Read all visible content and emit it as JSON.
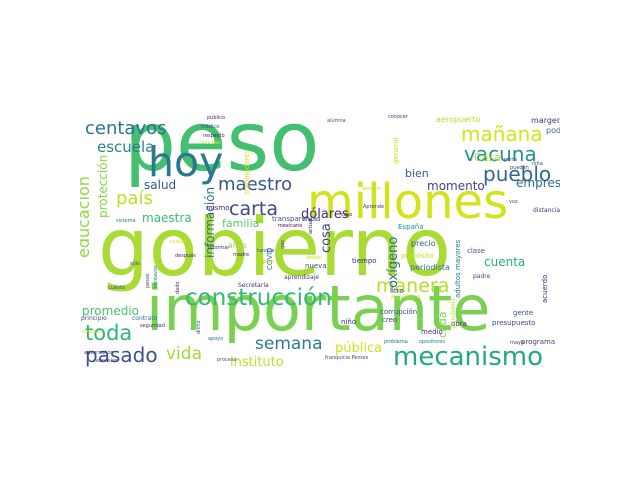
{
  "words": [
    {
      "text": "gobierno",
      "color": "#a8db34"
    },
    {
      "text": "peso",
      "color": "#44bf70"
    },
    {
      "text": "importante",
      "color": "#7ad151"
    },
    {
      "text": "millones",
      "color": "#d2e21b"
    },
    {
      "text": "hoy",
      "color": "#2a788e"
    },
    {
      "text": "mecanismo",
      "color": "#22a884"
    },
    {
      "text": "construcción",
      "color": "#35b779"
    },
    {
      "text": "centavos",
      "color": "#2c728e"
    },
    {
      "text": "mañana",
      "color": "#d8e219"
    },
    {
      "text": "vacuna",
      "color": "#21918c"
    },
    {
      "text": "pueblo",
      "color": "#31688e"
    },
    {
      "text": "toda",
      "color": "#2fb47c"
    },
    {
      "text": "pasado",
      "color": "#3b528b"
    },
    {
      "text": "maestro",
      "color": "#39568c"
    },
    {
      "text": "carta",
      "color": "#3e4989"
    },
    {
      "text": "manera",
      "color": "#b5de2b"
    },
    {
      "text": "país",
      "color": "#bddf26"
    },
    {
      "text": "escuela",
      "color": "#26828e"
    },
    {
      "text": "semana",
      "color": "#287d8e"
    },
    {
      "text": "vida",
      "color": "#a0da39"
    },
    {
      "text": "educación",
      "color": "#8fd744"
    },
    {
      "text": "dólares",
      "color": "#472d7b"
    },
    {
      "text": "salud",
      "color": "#38598c"
    },
    {
      "text": "momento",
      "color": "#3f4788"
    },
    {
      "text": "empresa",
      "color": "#31688e"
    },
    {
      "text": "cuenta",
      "color": "#25ac82"
    },
    {
      "text": "pública",
      "color": "#d0e11c"
    },
    {
      "text": "instituto",
      "color": "#c2df23"
    },
    {
      "text": "promedio",
      "color": "#4ac16d"
    },
    {
      "text": "maestra",
      "color": "#3dbc74"
    },
    {
      "text": "bien",
      "color": "#39568c"
    },
    {
      "text": "Casa",
      "color": "#a5db36"
    },
    {
      "text": "oxígeno",
      "color": "#2d708e"
    },
    {
      "text": "cosa",
      "color": "#404688"
    },
    {
      "text": "información",
      "color": "#2a768e"
    },
    {
      "text": "protección",
      "color": "#86d549"
    },
    {
      "text": "familia",
      "color": "#5ec962"
    },
    {
      "text": "cada",
      "color": "#83d34b"
    },
    {
      "text": "aeropuerto",
      "color": "#b8de29"
    },
    {
      "text": "margen",
      "color": "#46337e"
    },
    {
      "text": "poder",
      "color": "#2e6e8e"
    },
    {
      "text": "mismo",
      "color": "#481b6d"
    },
    {
      "text": "años",
      "color": "#9bd93c"
    },
    {
      "text": "precio",
      "color": "#365c8d"
    },
    {
      "text": "tiempo",
      "color": "#482677"
    },
    {
      "text": "periodista",
      "color": "#2d708e"
    },
    {
      "text": "clase",
      "color": "#3b528b"
    },
    {
      "text": "España",
      "color": "#1f958b"
    },
    {
      "text": "general",
      "color": "#d5e21a"
    },
    {
      "text": "propósito",
      "color": "#bddf26"
    },
    {
      "text": "presupuesto",
      "color": "#3e4c8a"
    },
    {
      "text": "gente",
      "color": "#3a548c"
    },
    {
      "text": "programa",
      "color": "#414487"
    },
    {
      "text": "obra",
      "color": "#482475"
    },
    {
      "text": "niño",
      "color": "#482576"
    },
    {
      "text": "creo",
      "color": "#424086"
    },
    {
      "text": "nueva",
      "color": "#3e4989"
    },
    {
      "text": "COVID",
      "color": "#31688e"
    },
    {
      "text": "trabajadores",
      "color": "#d5e21a"
    },
    {
      "text": "transparencia",
      "color": "#3d4e8a"
    },
    {
      "text": "adultos mayores",
      "color": "#2a788e"
    },
    {
      "text": "Secretaría",
      "color": "#472c7a"
    },
    {
      "text": "corrupción",
      "color": "#3f4889"
    },
    {
      "text": "aprendizaje",
      "color": "#453581"
    },
    {
      "text": "litro",
      "color": "#404588"
    },
    {
      "text": "medio",
      "color": "#46327e"
    },
    {
      "text": "pandemia",
      "color": "#b5de2b"
    },
    {
      "text": "República",
      "color": "#bade28"
    },
    {
      "text": "padre",
      "color": "#3e4989"
    },
    {
      "text": "acuerdo",
      "color": "#482878"
    },
    {
      "text": "distancia",
      "color": "#46327e"
    },
    {
      "text": "conocer",
      "color": "#46327e"
    },
    {
      "text": "alumno",
      "color": "#c0df25"
    },
    {
      "text": "alumna",
      "color": "#3b528b"
    },
    {
      "text": "público",
      "color": "#481f70"
    },
    {
      "text": "médico",
      "color": "#3b528b"
    },
    {
      "text": "respecto",
      "color": "#481467"
    },
    {
      "text": "muchas",
      "color": "#d5e21a"
    },
    {
      "text": "sistema",
      "color": "#2a788e"
    },
    {
      "text": "pesos",
      "color": "#443983"
    },
    {
      "text": "centavos",
      "color": "#2a778e"
    },
    {
      "text": "principio",
      "color": "#3e4989"
    },
    {
      "text": "contrato",
      "color": "#2a768e"
    },
    {
      "text": "sólo",
      "color": "#38588c"
    },
    {
      "text": "después",
      "color": "#481b6d"
    },
    {
      "text": "cuánto",
      "color": "#3b528b"
    },
    {
      "text": "apoyo",
      "color": "#2a768e"
    },
    {
      "text": "proceso",
      "color": "#3a538b"
    },
    {
      "text": "franquicia Pemex",
      "color": "#3f4788"
    },
    {
      "text": "televisión",
      "color": "#424086"
    },
    {
      "text": "informar",
      "color": "#46307e"
    },
    {
      "text": "tanque",
      "color": "#3e4a89"
    },
    {
      "text": "madre",
      "color": "#482576"
    },
    {
      "text": "deben",
      "color": "#d8e219"
    },
    {
      "text": "enero",
      "color": "#3a548c"
    },
    {
      "text": "problema",
      "color": "#2f6c8e"
    },
    {
      "text": "opositores",
      "color": "#2a788e"
    },
    {
      "text": "mexicano",
      "color": "#440154"
    },
    {
      "text": "Aprende",
      "color": "#463480"
    },
    {
      "text": "parte",
      "color": "#3d4e8a"
    },
    {
      "text": "pueden",
      "color": "#414487"
    },
    {
      "text": "avance",
      "color": "#d0e11c"
    },
    {
      "text": "adversarios",
      "color": "#46327e"
    },
    {
      "text": "dado",
      "color": "#443983"
    },
    {
      "text": "dicho",
      "color": "#3e4a89"
    },
    {
      "text": "seguridad",
      "color": "#472a7a"
    },
    {
      "text": "plan",
      "color": "#bade28"
    },
    {
      "text": "caso",
      "color": "#481b6d"
    },
    {
      "text": "actual",
      "color": "#46085c"
    },
    {
      "text": "ciudad",
      "color": "#d8e219"
    },
    {
      "text": "gas",
      "color": "#433e85"
    },
    {
      "text": "voz",
      "color": "#3b518b"
    },
    {
      "text": "niña",
      "color": "#3d4e8a"
    },
    {
      "text": "mayo",
      "color": "#46337e"
    }
  ]
}
